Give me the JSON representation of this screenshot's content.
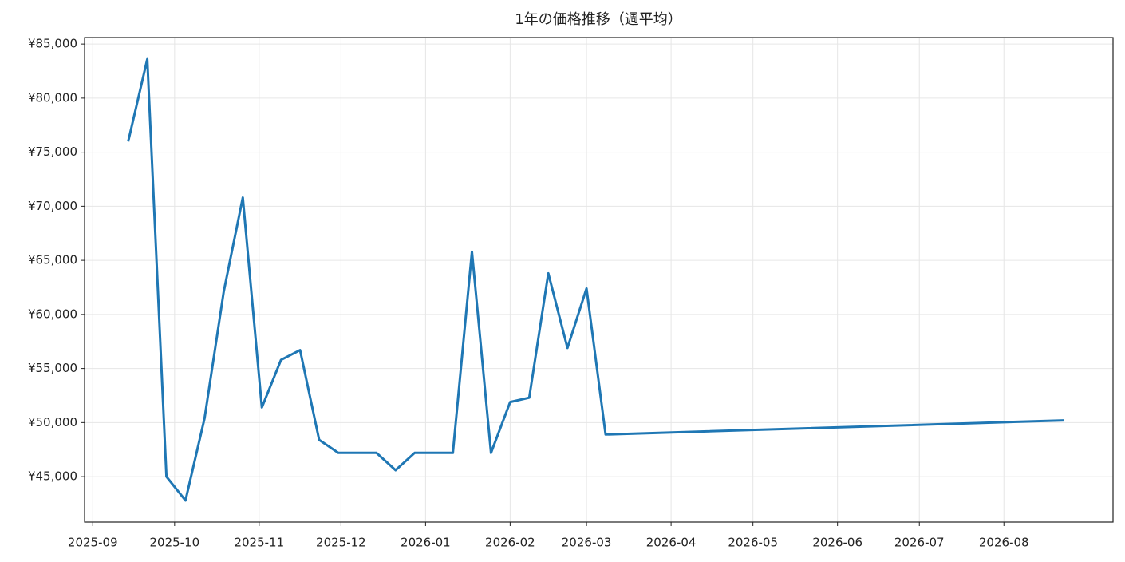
{
  "chart_data": {
    "type": "line",
    "title": "1年の価格推移（週平均）",
    "x": [
      "2025-09-14",
      "2025-09-21",
      "2025-09-28",
      "2025-10-05",
      "2025-10-12",
      "2025-10-19",
      "2025-10-26",
      "2025-11-02",
      "2025-11-09",
      "2025-11-16",
      "2025-11-23",
      "2025-11-30",
      "2025-12-07",
      "2025-12-14",
      "2025-12-21",
      "2025-12-28",
      "2026-01-04",
      "2026-01-11",
      "2026-01-18",
      "2026-01-25",
      "2026-02-01",
      "2026-02-08",
      "2026-02-15",
      "2026-02-22",
      "2026-03-01",
      "2026-03-08",
      "2026-08-23"
    ],
    "series": [
      {
        "color": "#1f77b4",
        "values": [
          76000,
          83600,
          45000,
          42800,
          50400,
          62100,
          70800,
          51400,
          55800,
          56700,
          48400,
          47200,
          47200,
          47200,
          45600,
          47200,
          47200,
          47200,
          65800,
          47200,
          51900,
          52300,
          63800,
          56900,
          62400,
          48900,
          50200
        ]
      }
    ],
    "xlim": [
      "2025-08-29",
      "2026-09-10"
    ],
    "xticks": [
      "2025-09",
      "2025-10",
      "2025-11",
      "2025-12",
      "2026-01",
      "2026-02",
      "2026-03",
      "2026-04",
      "2026-05",
      "2026-06",
      "2026-07",
      "2026-08"
    ],
    "ylim": [
      40800,
      85600
    ],
    "yticks": [
      {
        "value": 45000,
        "label": "¥45,000"
      },
      {
        "value": 50000,
        "label": "¥50,000"
      },
      {
        "value": 55000,
        "label": "¥55,000"
      },
      {
        "value": 60000,
        "label": "¥60,000"
      },
      {
        "value": 65000,
        "label": "¥65,000"
      },
      {
        "value": 70000,
        "label": "¥70,000"
      },
      {
        "value": 75000,
        "label": "¥75,000"
      },
      {
        "value": 80000,
        "label": "¥80,000"
      },
      {
        "value": 85000,
        "label": "¥85,000"
      }
    ],
    "grid": true
  }
}
